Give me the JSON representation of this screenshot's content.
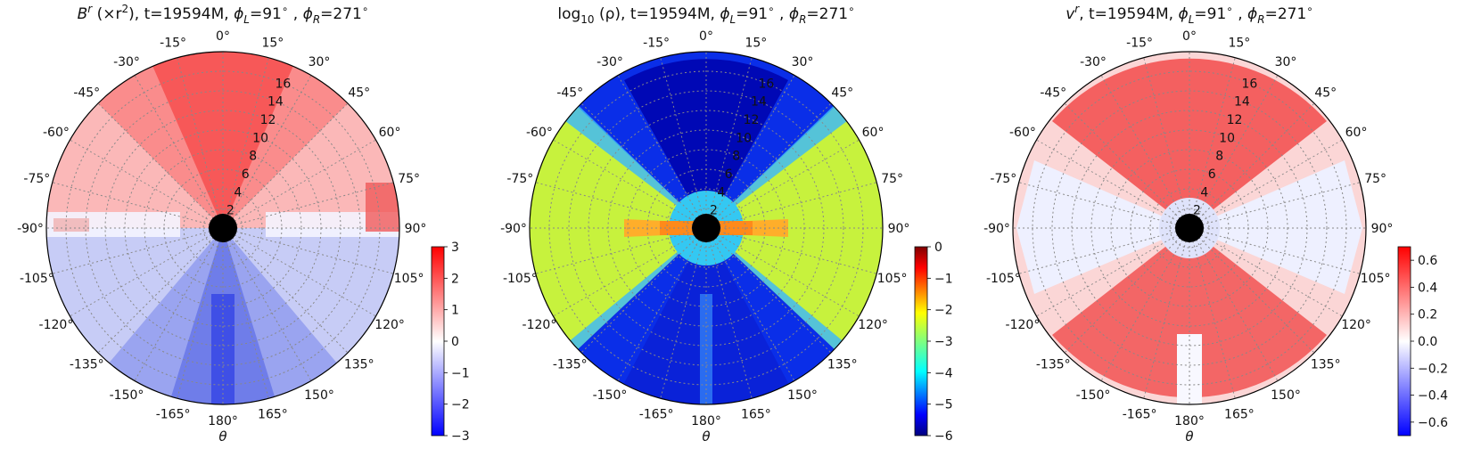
{
  "chart_data": [
    {
      "type": "heatmap",
      "projection": "polar",
      "title_parts": [
        "B",
        "r",
        " (×r",
        "2",
        "), t=19594M, ",
        "ϕ",
        "L",
        "=91",
        "∘",
        " , ",
        "ϕ",
        "R",
        "=271",
        "∘"
      ],
      "xlabel": "θ",
      "theta_ticks": [
        "0°",
        "15°",
        "30°",
        "45°",
        "60°",
        "75°",
        "90°",
        "105°",
        "120°",
        "135°",
        "150°",
        "165°",
        "180°",
        "-165°",
        "-150°",
        "-135°",
        "-120°",
        "-105°",
        "-90°",
        "-75°",
        "-60°",
        "-45°",
        "-30°",
        "-15°"
      ],
      "r_ticks": [
        "2",
        "4",
        "6",
        "8",
        "10",
        "12",
        "14",
        "16"
      ],
      "rlim": [
        0,
        18
      ],
      "grid": true,
      "colormap": "bwr",
      "colorbar": {
        "ticks": [
          "3",
          "2",
          "1",
          "0",
          "−1",
          "−2",
          "−3"
        ],
        "vmin": -3,
        "vmax": 3
      },
      "field": "Radial magnetic field times r squared; positive (red) in northern hemisphere, negative (blue) in southern hemisphere"
    },
    {
      "type": "heatmap",
      "projection": "polar",
      "title_parts": [
        "log",
        "10",
        " (ρ), t=19594M, ",
        "ϕ",
        "L",
        "=91",
        "∘",
        " , ",
        "ϕ",
        "R",
        "=271",
        "∘"
      ],
      "xlabel": "θ",
      "theta_ticks": [
        "0°",
        "15°",
        "30°",
        "45°",
        "60°",
        "75°",
        "90°",
        "105°",
        "120°",
        "135°",
        "150°",
        "165°",
        "180°",
        "-165°",
        "-150°",
        "-135°",
        "-120°",
        "-105°",
        "-90°",
        "-75°",
        "-60°",
        "-45°",
        "-30°",
        "-15°"
      ],
      "r_ticks": [
        "2",
        "4",
        "6",
        "8",
        "10",
        "12",
        "14",
        "16"
      ],
      "rlim": [
        0,
        18
      ],
      "grid": true,
      "colormap": "jet",
      "colorbar": {
        "ticks": [
          "0",
          "−1",
          "−2",
          "−3",
          "−4",
          "−5",
          "−6"
        ],
        "vmin": -6,
        "vmax": 0
      },
      "field": "Log density; dense equatorial disk (yellow/orange), low-density polar funnels (dark blue)"
    },
    {
      "type": "heatmap",
      "projection": "polar",
      "title_parts": [
        "v",
        "r",
        ", t=19594M, ",
        "ϕ",
        "L",
        "=91",
        "∘",
        " , ",
        "ϕ",
        "R",
        "=271",
        "∘"
      ],
      "xlabel": "θ",
      "theta_ticks": [
        "0°",
        "15°",
        "30°",
        "45°",
        "60°",
        "75°",
        "90°",
        "105°",
        "120°",
        "135°",
        "150°",
        "165°",
        "180°",
        "-165°",
        "-150°",
        "-135°",
        "-120°",
        "-105°",
        "-90°",
        "-75°",
        "-60°",
        "-45°",
        "-30°",
        "-15°"
      ],
      "r_ticks": [
        "2",
        "4",
        "6",
        "8",
        "10",
        "12",
        "14",
        "16"
      ],
      "rlim": [
        0,
        18
      ],
      "grid": true,
      "colormap": "bwr",
      "colorbar": {
        "ticks": [
          "0.6",
          "0.4",
          "0.2",
          "0.0",
          "−0.2",
          "−0.4",
          "−0.6"
        ],
        "vmin": -0.7,
        "vmax": 0.7,
        "tick_values": [
          0.6,
          0.4,
          0.2,
          0.0,
          -0.2,
          -0.4,
          -0.6
        ]
      },
      "field": "Radial velocity; outflows (red) in polar cones, near-zero/inflow (white/blue) along equator"
    }
  ]
}
